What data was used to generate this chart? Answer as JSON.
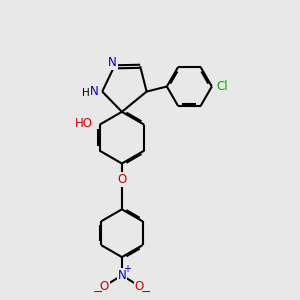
{
  "bg_color": "#e8e8e8",
  "bond_color": "#000000",
  "bond_width": 1.5,
  "atom_colors": {
    "N": "#0000cc",
    "O": "#cc0000",
    "Cl": "#00aa00",
    "H": "#000000"
  },
  "font_size": 8.5
}
